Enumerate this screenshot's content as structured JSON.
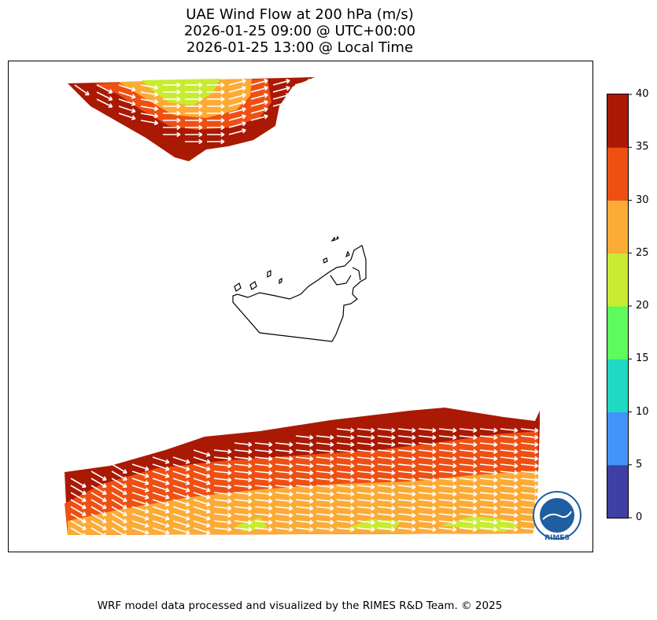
{
  "title": {
    "line1": "UAE Wind Flow at 200 hPa (m/s)",
    "line2": "2026-01-25 09:00 @ UTC+00:00",
    "line3": "2026-01-25 13:00 @ Local Time"
  },
  "colorbar": {
    "ticks": [
      "0",
      "5",
      "10",
      "15",
      "20",
      "25",
      "30",
      "35",
      "40"
    ],
    "colors": [
      "#3f3fa4",
      "#4393fb",
      "#1fd9c2",
      "#5dfb5b",
      "#c9eb31",
      "#fcab37",
      "#ee5014",
      "#aa1904"
    ]
  },
  "shading": {
    "high": "#aa1904",
    "strong": "#ee5014",
    "medium": "#fcab37",
    "lowmed": "#c9eb31",
    "arrows": "#ffffff",
    "boundary": "#000000"
  },
  "logo": {
    "text": "RIMES"
  },
  "footer": "WRF model data processed and visualized by the RIMES R&D Team. © 2025"
}
